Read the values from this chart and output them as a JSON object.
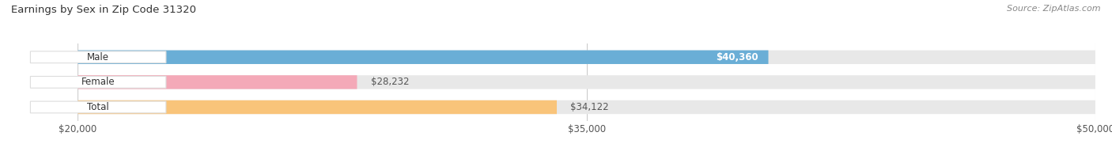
{
  "title": "Earnings by Sex in Zip Code 31320",
  "source": "Source: ZipAtlas.com",
  "categories": [
    "Male",
    "Female",
    "Total"
  ],
  "values": [
    40360,
    28232,
    34122
  ],
  "bar_colors": [
    "#6aaed6",
    "#f4a9b8",
    "#f9c47a"
  ],
  "bar_labels": [
    "$40,360",
    "$28,232",
    "$34,122"
  ],
  "xmin": 20000,
  "xmax": 50000,
  "xticks": [
    20000,
    35000,
    50000
  ],
  "xtick_labels": [
    "$20,000",
    "$35,000",
    "$50,000"
  ],
  "bar_bg_color": "#e8e8e8",
  "fig_bg_color": "#ffffff",
  "bar_height": 0.55,
  "label_inside_threshold": 38000,
  "tag_color": "#ffffff",
  "tag_edge_color": "#dddddd",
  "grid_color": "#cccccc"
}
